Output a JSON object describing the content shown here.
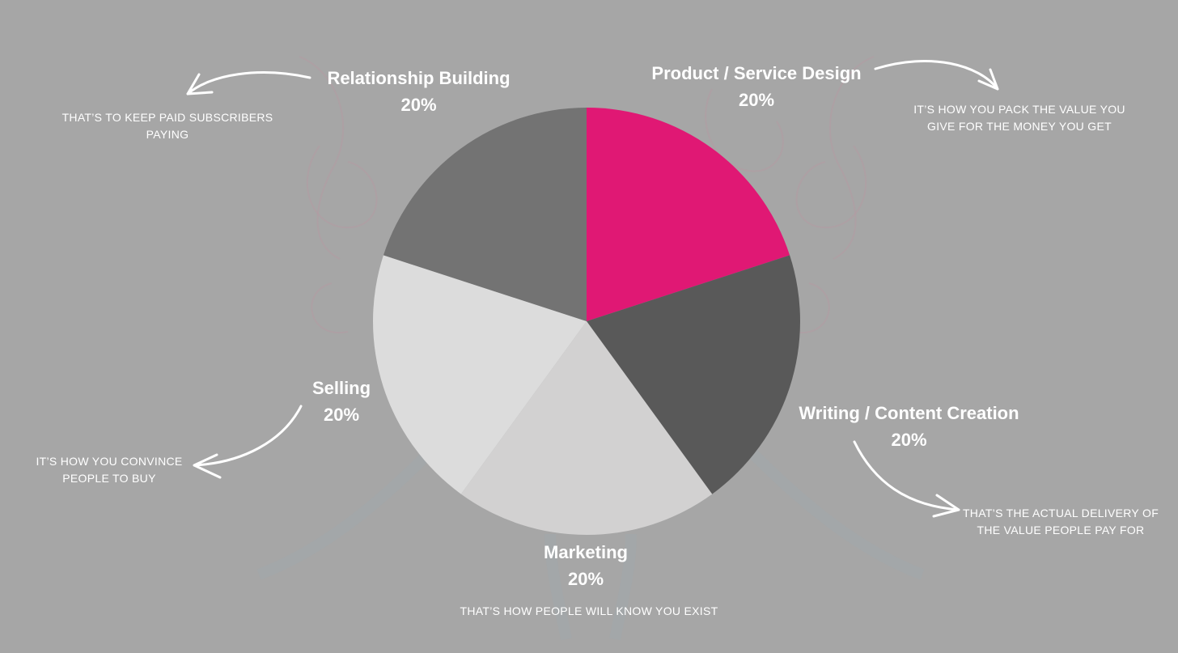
{
  "chart_data": {
    "type": "pie",
    "slices": [
      {
        "label": "Product / Service Design",
        "value": 20,
        "display": "20%",
        "color": "#e01874",
        "note": "IT’S HOW YOU PACK THE VALUE YOU GIVE FOR THE MONEY YOU GET"
      },
      {
        "label": "Writing / Content Creation",
        "value": 20,
        "display": "20%",
        "color": "#595959",
        "note": "THAT’S THE ACTUAL DELIVERY OF THE VALUE PEOPLE PAY FOR"
      },
      {
        "label": "Marketing",
        "value": 20,
        "display": "20%",
        "color": "#d2d1d1",
        "note": "THAT’S HOW PEOPLE WILL KNOW YOU EXIST"
      },
      {
        "label": "Selling",
        "value": 20,
        "display": "20%",
        "color": "#dcdcdc",
        "note": "IT’S HOW YOU CONVINCE PEOPLE TO BUY"
      },
      {
        "label": "Relationship Building",
        "value": 20,
        "display": "20%",
        "color": "#737373",
        "note": "THAT’S TO KEEP PAID SUBSCRIBERS PAYING"
      }
    ],
    "start_angle_deg": 0,
    "direction": "clockwise",
    "legend": "none"
  },
  "background_color": "#a6a6a6"
}
